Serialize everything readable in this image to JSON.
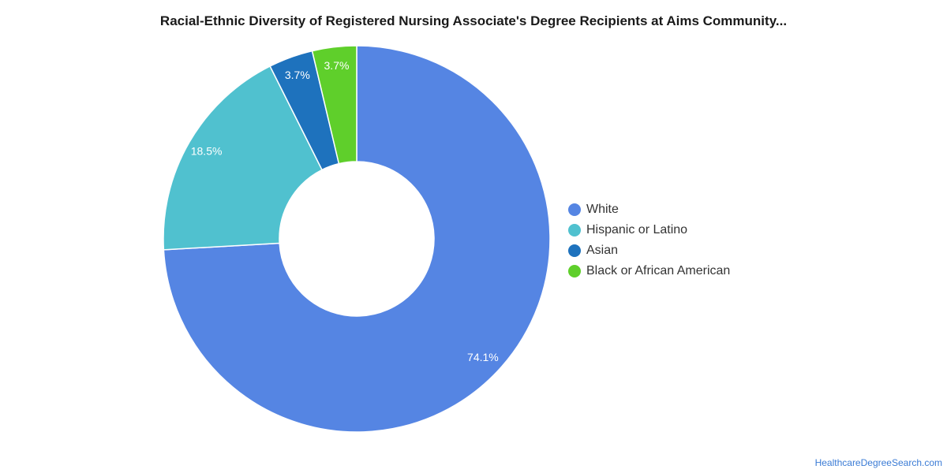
{
  "chart_data": {
    "type": "pie",
    "title": "Racial-Ethnic Diversity of Registered Nursing Associate's Degree Recipients at Aims Community...",
    "legend_position": "right",
    "categories": [
      "White",
      "Hispanic or Latino",
      "Asian",
      "Black or African American"
    ],
    "values": [
      74.1,
      18.5,
      3.7,
      3.7
    ],
    "data_labels": [
      "74.1%",
      "18.5%",
      "3.7%",
      "3.7%"
    ],
    "colors": [
      "#5585e3",
      "#50c1cf",
      "#1e72bd",
      "#5fcf2b"
    ]
  },
  "source_text": "HealthcareDegreeSearch.com"
}
